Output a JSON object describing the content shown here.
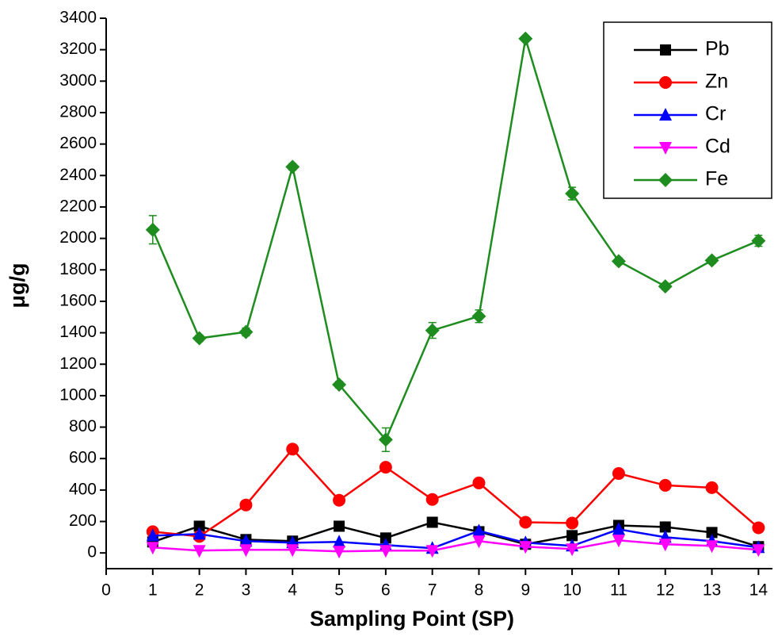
{
  "chart_data": {
    "type": "line",
    "xlabel": "Sampling Point (SP)",
    "ylabel": "μg/g",
    "x": [
      1,
      2,
      3,
      4,
      5,
      6,
      7,
      8,
      9,
      10,
      11,
      12,
      13,
      14
    ],
    "xlim": [
      0,
      14.3
    ],
    "xticks": [
      0,
      1,
      2,
      3,
      4,
      5,
      6,
      7,
      8,
      9,
      10,
      11,
      12,
      13,
      14
    ],
    "ylim": [
      -100,
      3400
    ],
    "yticks": [
      0,
      200,
      400,
      600,
      800,
      1000,
      1200,
      1400,
      1600,
      1800,
      2000,
      2200,
      2400,
      2600,
      2800,
      3000,
      3200,
      3400
    ],
    "legend": "upper right",
    "series": [
      {
        "name": "Pb",
        "color": "#000000",
        "marker": "square",
        "values": [
          70,
          170,
          85,
          75,
          170,
          95,
          195,
          135,
          55,
          110,
          175,
          165,
          130,
          40
        ]
      },
      {
        "name": "Zn",
        "color": "#ff0000",
        "marker": "circle",
        "values": [
          135,
          105,
          305,
          660,
          335,
          545,
          340,
          445,
          195,
          190,
          505,
          430,
          415,
          160
        ]
      },
      {
        "name": "Cr",
        "color": "#0000ff",
        "marker": "triangle-up",
        "values": [
          110,
          120,
          75,
          65,
          70,
          50,
          30,
          140,
          65,
          45,
          150,
          100,
          75,
          35
        ]
      },
      {
        "name": "Cd",
        "color": "#ff00ff",
        "marker": "triangle-down",
        "values": [
          35,
          15,
          20,
          20,
          10,
          15,
          15,
          75,
          40,
          25,
          80,
          55,
          45,
          20
        ]
      },
      {
        "name": "Fe",
        "color": "#1e8c1e",
        "marker": "diamond",
        "values": [
          2055,
          1365,
          1405,
          2455,
          1070,
          720,
          1415,
          1505,
          3270,
          2285,
          1855,
          1695,
          1860,
          1985
        ],
        "errors": [
          90,
          20,
          25,
          20,
          20,
          75,
          50,
          40,
          15,
          40,
          20,
          20,
          20,
          35
        ]
      }
    ]
  }
}
